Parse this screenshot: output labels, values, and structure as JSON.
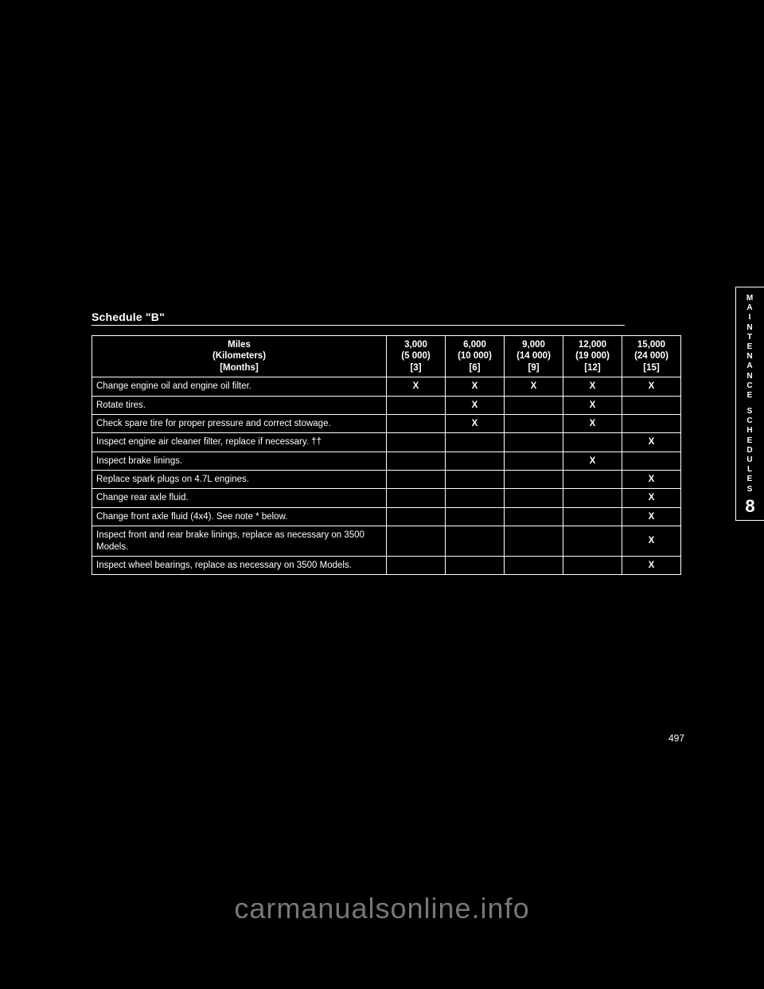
{
  "heading": "Schedule \"B\"",
  "table": {
    "header": {
      "miles_label": "Miles",
      "km_label": "(Kilometers)",
      "months_label": "[Months]",
      "columns": [
        {
          "miles": "3,000",
          "km": "(5 000)",
          "months": "[3]"
        },
        {
          "miles": "6,000",
          "km": "(10 000)",
          "months": "[6]"
        },
        {
          "miles": "9,000",
          "km": "(14 000)",
          "months": "[9]"
        },
        {
          "miles": "12,000",
          "km": "(19 000)",
          "months": "[12]"
        },
        {
          "miles": "15,000",
          "km": "(24 000)",
          "months": "[15]"
        }
      ]
    },
    "rows": [
      {
        "desc": "Change engine oil and engine oil filter.",
        "marks": [
          "X",
          "X",
          "X",
          "X",
          "X"
        ]
      },
      {
        "desc": "Rotate tires.",
        "marks": [
          "",
          "X",
          "",
          "X",
          ""
        ]
      },
      {
        "desc": "Check spare tire for proper pressure and correct stowage.",
        "marks": [
          "",
          "X",
          "",
          "X",
          ""
        ]
      },
      {
        "desc": "Inspect engine air cleaner filter, replace if necessary. ††",
        "marks": [
          "",
          "",
          "",
          "",
          "X"
        ]
      },
      {
        "desc": "Inspect brake linings.",
        "marks": [
          "",
          "",
          "",
          "X",
          ""
        ]
      },
      {
        "desc": "Replace spark plugs on 4.7L engines.",
        "marks": [
          "",
          "",
          "",
          "",
          "X"
        ]
      },
      {
        "desc": "Change rear axle fluid.",
        "marks": [
          "",
          "",
          "",
          "",
          "X"
        ]
      },
      {
        "desc": "Change front axle fluid (4x4). See note * below.",
        "marks": [
          "",
          "",
          "",
          "",
          "X"
        ]
      },
      {
        "desc": "Inspect front and rear brake linings, replace as necessary on 3500 Models.",
        "marks": [
          "",
          "",
          "",
          "",
          "X"
        ]
      },
      {
        "desc": "Inspect wheel bearings, replace as necessary on 3500 Models.",
        "marks": [
          "",
          "",
          "",
          "",
          "X"
        ]
      }
    ]
  },
  "side_tab": {
    "line1": "MAINTENANCE",
    "line2": "SCHEDULES",
    "number": "8"
  },
  "page_number": "497",
  "watermark": "carmanualsonline.info"
}
